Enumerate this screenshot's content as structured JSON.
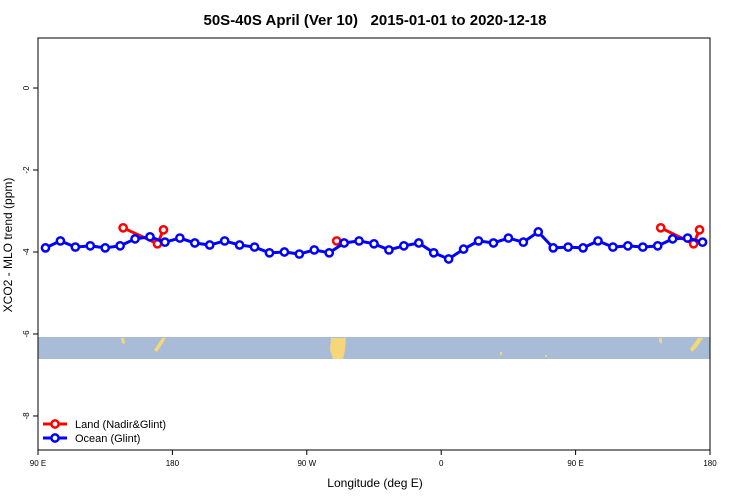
{
  "chart_data": {
    "type": "line",
    "title": "50S-40S April (Ver 10)   2015-01-01 to 2020-12-18",
    "xlabel": "Longitude (deg E)",
    "ylabel": "XCO2 - MLO trend (ppm)",
    "xlim": [
      90,
      540
    ],
    "ylim": [
      -8.83,
      1.22
    ],
    "xticks": [
      {
        "value": 90,
        "label": "90 E"
      },
      180,
      {
        "value": 270,
        "label": "90 W"
      },
      {
        "value": 360,
        "label": "0"
      },
      {
        "value": 450,
        "label": "90 E"
      },
      {
        "value": 540,
        "label": "180"
      }
    ],
    "yticks": [
      0,
      -2,
      -4,
      -6,
      -8
    ],
    "legend": "bottom-left",
    "series": [
      {
        "name": "Land (Nadir&Glint)",
        "color": "#ff0000",
        "x": [
          147,
          170,
          174,
          null,
          290,
          null,
          507,
          529,
          533
        ],
        "values": [
          -3.41,
          -3.8,
          -3.46,
          null,
          -3.73,
          null,
          -3.41,
          -3.8,
          -3.46
        ]
      },
      {
        "name": "Ocean (Glint)",
        "color": "#0000ff",
        "x": [
          95,
          105,
          115,
          125,
          135,
          145,
          155,
          165,
          175,
          185,
          195,
          205,
          215,
          225,
          235,
          245,
          255,
          265,
          275,
          285,
          295,
          305,
          315,
          325,
          335,
          345,
          355,
          365,
          375,
          385,
          395,
          405,
          415,
          425,
          435,
          445,
          455,
          465,
          475,
          485,
          495,
          505,
          515,
          525,
          535
        ],
        "values": [
          -3.9,
          -3.73,
          -3.88,
          -3.85,
          -3.9,
          -3.85,
          -3.68,
          -3.63,
          -3.76,
          -3.66,
          -3.78,
          -3.83,
          -3.73,
          -3.83,
          -3.88,
          -4.02,
          -4.0,
          -4.05,
          -3.95,
          -4.02,
          -3.78,
          -3.73,
          -3.8,
          -3.95,
          -3.85,
          -3.78,
          -4.02,
          -4.17,
          -3.93,
          -3.73,
          -3.78,
          -3.66,
          -3.76,
          -3.51,
          -3.9,
          -3.88,
          -3.9,
          -3.73,
          -3.88,
          -3.85,
          -3.88,
          -3.85,
          -3.68,
          -3.66,
          -3.76
        ]
      }
    ]
  }
}
